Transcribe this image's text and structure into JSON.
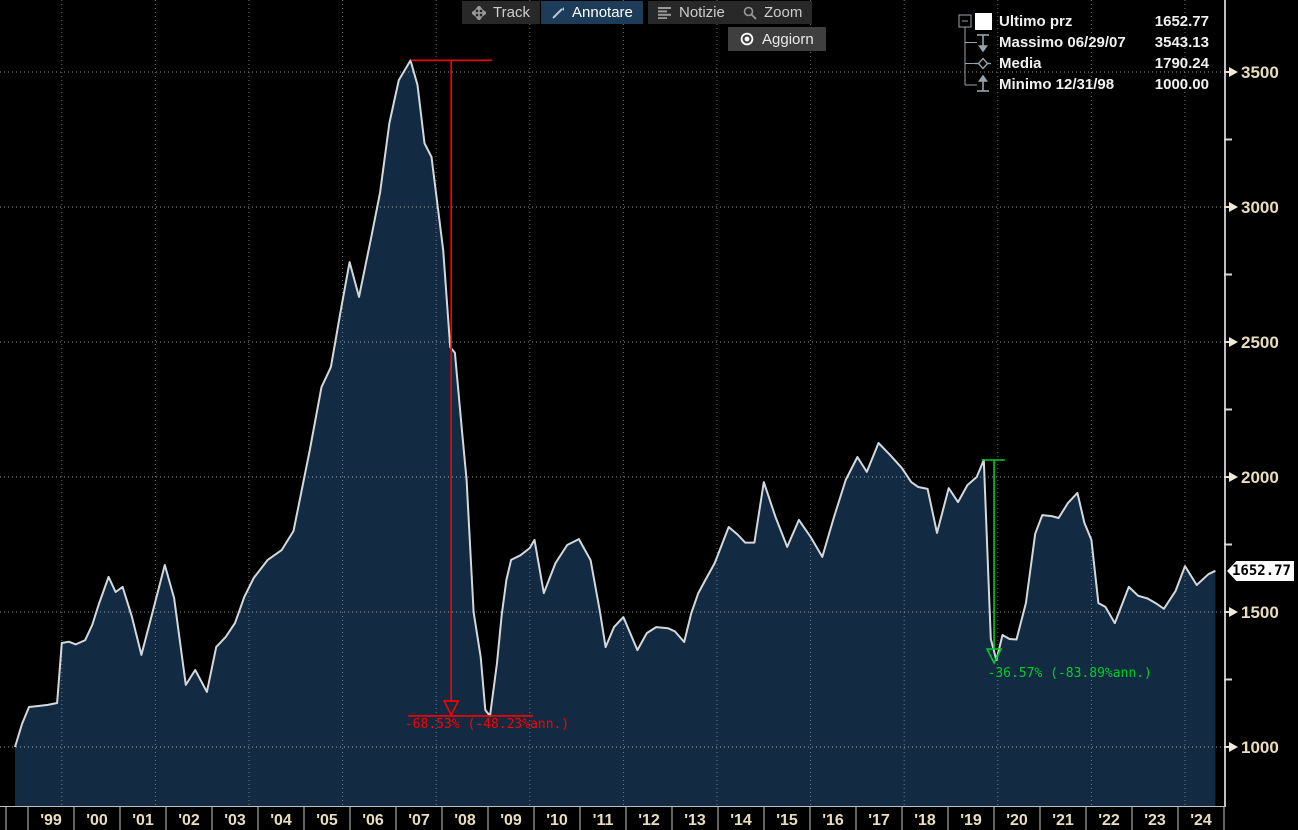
{
  "toolbar": {
    "buttons": [
      {
        "label": "Track",
        "icon": "track-icon",
        "active": false
      },
      {
        "label": "Annotare",
        "icon": "annotate-icon",
        "active": true
      },
      {
        "label": "Notizie",
        "icon": "news-icon",
        "active": false
      },
      {
        "label": "Zoom",
        "icon": "magnifier-icon",
        "active": false
      }
    ],
    "refresh_label": "Aggiorn"
  },
  "legend": {
    "rows": [
      {
        "marker": "last-price-swatch",
        "label": "Ultimo prz",
        "value": "1652.77"
      },
      {
        "marker": "maximum-marker",
        "label": "Massimo 06/29/07",
        "value": "3543.13"
      },
      {
        "marker": "mean-marker",
        "label": "Media",
        "value": "1790.24"
      },
      {
        "marker": "minimum-marker",
        "label": "Minimo 12/31/98",
        "value": "1000.00"
      }
    ]
  },
  "y_axis": {
    "major_ticks": [
      1000,
      1500,
      2000,
      2500,
      3000,
      3500
    ],
    "minor_ticks": [
      1250,
      1750,
      2250,
      2750,
      3250
    ],
    "last_price_label": "1652.77"
  },
  "x_axis": {
    "labels": [
      "'99",
      "'00",
      "'01",
      "'02",
      "'03",
      "'04",
      "'05",
      "'06",
      "'07",
      "'08",
      "'09",
      "'10",
      "'11",
      "'12",
      "'13",
      "'14",
      "'15",
      "'16",
      "'17",
      "'18",
      "'19",
      "'20",
      "'21",
      "'22",
      "'23",
      "'24"
    ]
  },
  "colors": {
    "background": "#000000",
    "area_fill": "#122a42",
    "series_line": "#d5d8db",
    "grid_h": "#c9c9c9",
    "grid_v": "#aeb2b8",
    "axis_line": "#bfbfbf",
    "axis_label": "#e9ddbe",
    "annotation_red": "#ff0000",
    "annotation_green": "#00cc26",
    "selected_button": "#1d3c59"
  },
  "chart_data": {
    "type": "area",
    "series_name": "Ultimo prz",
    "x_unit": "year",
    "xlim": [
      1998.7,
      2024.7
    ],
    "ylim_visible": [
      1000,
      3500
    ],
    "grid": "dotted",
    "legend_position": "top-right",
    "stats": {
      "last": 1652.77,
      "max": 3543.13,
      "max_date": "06/29/07",
      "mean": 1790.24,
      "min": 1000.0,
      "min_date": "12/31/98"
    },
    "points": [
      [
        1999.0,
        1000
      ],
      [
        1999.15,
        1085
      ],
      [
        1999.3,
        1148
      ],
      [
        1999.5,
        1152
      ],
      [
        1999.7,
        1156
      ],
      [
        1999.9,
        1163
      ],
      [
        2000.0,
        1385
      ],
      [
        2000.15,
        1390
      ],
      [
        2000.3,
        1380
      ],
      [
        2000.5,
        1396
      ],
      [
        2000.65,
        1452
      ],
      [
        2000.8,
        1533
      ],
      [
        2001.0,
        1630
      ],
      [
        2001.15,
        1574
      ],
      [
        2001.3,
        1593
      ],
      [
        2001.5,
        1481
      ],
      [
        2001.7,
        1341
      ],
      [
        2001.95,
        1507
      ],
      [
        2002.2,
        1674
      ],
      [
        2002.4,
        1552
      ],
      [
        2002.65,
        1230
      ],
      [
        2002.85,
        1285
      ],
      [
        2003.1,
        1204
      ],
      [
        2003.3,
        1370
      ],
      [
        2003.5,
        1407
      ],
      [
        2003.7,
        1459
      ],
      [
        2003.9,
        1556
      ],
      [
        2004.1,
        1626
      ],
      [
        2004.4,
        1693
      ],
      [
        2004.7,
        1730
      ],
      [
        2004.95,
        1800
      ],
      [
        2005.3,
        2100
      ],
      [
        2005.55,
        2333
      ],
      [
        2005.75,
        2407
      ],
      [
        2005.95,
        2607
      ],
      [
        2006.15,
        2796
      ],
      [
        2006.35,
        2667
      ],
      [
        2006.6,
        2878
      ],
      [
        2006.8,
        3052
      ],
      [
        2007.0,
        3311
      ],
      [
        2007.2,
        3470
      ],
      [
        2007.45,
        3543.13
      ],
      [
        2007.6,
        3452
      ],
      [
        2007.75,
        3236
      ],
      [
        2007.9,
        3185
      ],
      [
        2008.05,
        2978
      ],
      [
        2008.15,
        2840
      ],
      [
        2008.3,
        2481
      ],
      [
        2008.4,
        2460
      ],
      [
        2008.55,
        2174
      ],
      [
        2008.65,
        1989
      ],
      [
        2008.8,
        1500
      ],
      [
        2008.95,
        1333
      ],
      [
        2009.05,
        1137
      ],
      [
        2009.15,
        1115
      ],
      [
        2009.3,
        1311
      ],
      [
        2009.4,
        1489
      ],
      [
        2009.5,
        1619
      ],
      [
        2009.6,
        1693
      ],
      [
        2009.8,
        1710
      ],
      [
        2010.0,
        1737
      ],
      [
        2010.1,
        1767
      ],
      [
        2010.3,
        1570
      ],
      [
        2010.55,
        1681
      ],
      [
        2010.8,
        1748
      ],
      [
        2011.05,
        1770
      ],
      [
        2011.3,
        1692
      ],
      [
        2011.5,
        1500
      ],
      [
        2011.62,
        1370
      ],
      [
        2011.8,
        1444
      ],
      [
        2012.0,
        1481
      ],
      [
        2012.3,
        1359
      ],
      [
        2012.5,
        1422
      ],
      [
        2012.7,
        1444
      ],
      [
        2012.95,
        1440
      ],
      [
        2013.1,
        1428
      ],
      [
        2013.3,
        1389
      ],
      [
        2013.45,
        1496
      ],
      [
        2013.6,
        1570
      ],
      [
        2013.75,
        1618
      ],
      [
        2013.95,
        1681
      ],
      [
        2014.25,
        1815
      ],
      [
        2014.45,
        1785
      ],
      [
        2014.6,
        1757
      ],
      [
        2014.8,
        1757
      ],
      [
        2015.0,
        1981
      ],
      [
        2015.25,
        1852
      ],
      [
        2015.5,
        1741
      ],
      [
        2015.75,
        1841
      ],
      [
        2016.0,
        1778
      ],
      [
        2016.25,
        1704
      ],
      [
        2016.5,
        1852
      ],
      [
        2016.75,
        1989
      ],
      [
        2017.0,
        2074
      ],
      [
        2017.2,
        2019
      ],
      [
        2017.45,
        2126
      ],
      [
        2017.7,
        2081
      ],
      [
        2017.95,
        2033
      ],
      [
        2018.15,
        1981
      ],
      [
        2018.3,
        1963
      ],
      [
        2018.5,
        1956
      ],
      [
        2018.7,
        1793
      ],
      [
        2018.95,
        1959
      ],
      [
        2019.15,
        1907
      ],
      [
        2019.35,
        1970
      ],
      [
        2019.55,
        2000
      ],
      [
        2019.7,
        2063
      ],
      [
        2019.85,
        1400
      ],
      [
        2019.97,
        1322
      ],
      [
        2020.1,
        1415
      ],
      [
        2020.25,
        1400
      ],
      [
        2020.4,
        1398
      ],
      [
        2020.6,
        1533
      ],
      [
        2020.8,
        1790
      ],
      [
        2020.95,
        1859
      ],
      [
        2021.15,
        1855
      ],
      [
        2021.3,
        1848
      ],
      [
        2021.5,
        1904
      ],
      [
        2021.7,
        1941
      ],
      [
        2021.85,
        1830
      ],
      [
        2022.0,
        1767
      ],
      [
        2022.15,
        1533
      ],
      [
        2022.3,
        1519
      ],
      [
        2022.5,
        1459
      ],
      [
        2022.8,
        1593
      ],
      [
        2023.0,
        1560
      ],
      [
        2023.2,
        1550
      ],
      [
        2023.4,
        1530
      ],
      [
        2023.55,
        1512
      ],
      [
        2023.8,
        1578
      ],
      [
        2024.0,
        1670
      ],
      [
        2024.25,
        1600
      ],
      [
        2024.5,
        1640
      ],
      [
        2024.65,
        1652.77
      ]
    ],
    "annotations": [
      {
        "id": "drawdown-2007-2009",
        "color": "#ff0000",
        "text": "-68.53% (-48.23%ann.)",
        "top_rule": {
          "value": 3543.13,
          "t1": 2007.46,
          "t2": 2009.19
        },
        "arrow": {
          "t": 2008.32,
          "from_value": 3543.13,
          "to_value": 1170
        },
        "bottom_rule": {
          "value": 1115,
          "t1": 2007.4,
          "t2": 2010.07
        },
        "label_pos": {
          "t": 2007.33,
          "value": 1110
        }
      },
      {
        "id": "drawdown-2020",
        "color": "#00cc26",
        "text": "-36.57% (-83.89%ann.)",
        "top_rule": {
          "value": 2063,
          "t1": 2019.66,
          "t2": 2020.15
        },
        "arrow": {
          "t": 2019.92,
          "from_value": 2063,
          "to_value": 1363
        },
        "bottom_rule": null,
        "label_pos": {
          "t": 2019.78,
          "value": 1300
        }
      }
    ]
  }
}
